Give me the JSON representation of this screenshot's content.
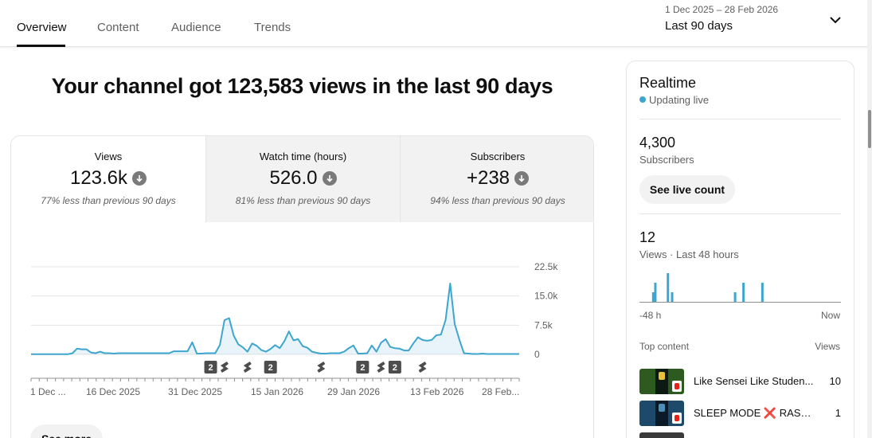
{
  "tabs": [
    {
      "label": "Overview",
      "active": true
    },
    {
      "label": "Content",
      "active": false
    },
    {
      "label": "Audience",
      "active": false
    },
    {
      "label": "Trends",
      "active": false
    }
  ],
  "date_picker": {
    "range": "1 Dec 2025 – 28 Feb 2026",
    "period": "Last 90 days",
    "icon": "chevron-down-icon"
  },
  "headline": "Your channel got 123,583 views in the last 90 days",
  "metrics": [
    {
      "label": "Views",
      "value": "123.6k",
      "comparison": "77% less than previous 90 days",
      "trend_icon": "arrow-down-icon"
    },
    {
      "label": "Watch time (hours)",
      "value": "526.0",
      "comparison": "81% less than previous 90 days",
      "trend_icon": "arrow-down-icon"
    },
    {
      "label": "Subscribers",
      "value": "+238",
      "comparison": "94% less than previous 90 days",
      "trend_icon": "arrow-down-icon"
    }
  ],
  "chart_data": {
    "type": "area",
    "series": [
      {
        "name": "Views",
        "color": "#3ea6ce",
        "values": [
          50,
          50,
          50,
          50,
          50,
          50,
          50,
          50,
          50,
          300,
          1500,
          1300,
          1300,
          500,
          300,
          700,
          300,
          300,
          200,
          300,
          300,
          300,
          300,
          300,
          300,
          300,
          300,
          300,
          300,
          300,
          300,
          800,
          800,
          800,
          800,
          3100,
          200,
          200,
          300,
          300,
          300,
          2400,
          8800,
          9300,
          4800,
          2600,
          1800,
          700,
          2800,
          2200,
          1100,
          700,
          1400,
          2400,
          1600,
          3400,
          5900,
          3600,
          3900,
          2100,
          1700,
          700,
          400,
          200,
          200,
          300,
          300,
          300,
          700,
          1600,
          2300,
          200,
          200,
          300,
          2300,
          700,
          3000,
          3900,
          1900,
          1600,
          1500,
          1000,
          1000,
          2800,
          4400,
          3700,
          3500,
          3700,
          4900,
          5100,
          8800,
          18200,
          7800,
          3800,
          300,
          200,
          100,
          100,
          200,
          100,
          100,
          100,
          100,
          100,
          100,
          100,
          100
        ]
      }
    ],
    "x_ticks": [
      "1 Dec ...",
      "16 Dec 2025",
      "31 Dec 2025",
      "15 Jan 2026",
      "29 Jan 2026",
      "13 Feb 2026",
      "28 Feb..."
    ],
    "y_ticks": [
      "22.5k",
      "15.0k",
      "7.5k",
      "0"
    ],
    "ylim": [
      0,
      22500
    ],
    "grid": true,
    "markers": [
      {
        "kind": "count",
        "label": "2",
        "pos": 39
      },
      {
        "kind": "short",
        "label": "",
        "pos": 42
      },
      {
        "kind": "short",
        "label": "",
        "pos": 47
      },
      {
        "kind": "count",
        "label": "2",
        "pos": 52
      },
      {
        "kind": "short",
        "label": "",
        "pos": 63
      },
      {
        "kind": "count",
        "label": "2",
        "pos": 72
      },
      {
        "kind": "short",
        "label": "",
        "pos": 76
      },
      {
        "kind": "count",
        "label": "2",
        "pos": 79
      },
      {
        "kind": "short",
        "label": "",
        "pos": 85
      }
    ]
  },
  "see_more": "See more",
  "realtime": {
    "title": "Realtime",
    "status": "Updating live",
    "subscribers": "4,300",
    "subscribers_label": "Subscribers",
    "live_count_button": "See live count",
    "views": "12",
    "views_label": "Views · Last 48 hours",
    "mini_chart": {
      "type": "bar",
      "values": [
        0,
        0,
        0,
        0,
        0,
        0,
        2,
        4,
        0,
        0,
        0,
        0,
        0,
        6,
        0,
        2,
        0,
        0,
        0,
        0,
        0,
        0,
        0,
        0,
        0,
        0,
        0,
        0,
        0,
        0,
        0,
        0,
        0,
        0,
        0,
        0,
        0,
        0,
        0,
        0,
        0,
        0,
        0,
        0,
        0,
        2,
        0,
        0,
        0,
        4,
        0,
        0,
        0,
        0,
        0,
        0,
        0,
        0,
        4,
        0,
        0,
        0,
        0,
        0,
        0,
        0,
        0,
        0,
        0,
        0,
        0,
        0,
        0,
        0,
        0,
        0,
        0,
        0,
        0,
        0,
        0,
        0,
        0,
        0,
        0,
        0,
        0,
        0,
        0,
        0,
        0,
        0,
        0,
        0,
        0,
        0
      ],
      "left_label": "-48 h",
      "right_label": "Now"
    },
    "top_content_label": "Top content",
    "top_content_views_label": "Views",
    "items": [
      {
        "title": "Like Sensei Like Studen...",
        "views": "10",
        "thumb_color": "#2d5a1e"
      },
      {
        "title": "SLEEP MODE ❌ RASEN...",
        "views": "1",
        "thumb_color": "#1d4a6a"
      },
      {
        "title": "",
        "views": "",
        "thumb_color": "#3a3a3a"
      }
    ]
  }
}
